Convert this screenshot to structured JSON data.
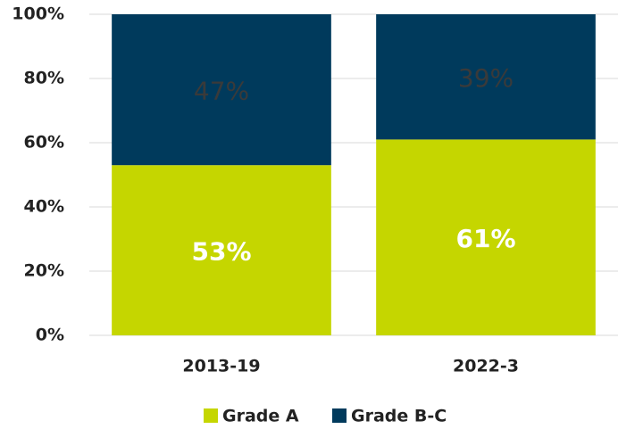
{
  "chart_data": {
    "type": "stacked_bar",
    "categories": [
      "2013-19",
      "2022-3"
    ],
    "series": [
      {
        "name": "Grade A",
        "color": "#c5d600",
        "values": [
          53,
          61
        ],
        "value_labels": [
          "53%",
          "61%"
        ]
      },
      {
        "name": "Grade B-C",
        "color": "#003a5c",
        "values": [
          47,
          39
        ],
        "value_labels": [
          "47%",
          "39%"
        ]
      }
    ],
    "ylim": [
      0,
      100
    ],
    "yticks": [
      {
        "value": 0,
        "label": "0%"
      },
      {
        "value": 20,
        "label": "20%"
      },
      {
        "value": 40,
        "label": "40%"
      },
      {
        "value": 60,
        "label": "60%"
      },
      {
        "value": 80,
        "label": "80%"
      },
      {
        "value": 100,
        "label": "100%"
      }
    ],
    "grid": true,
    "legend": "bottom"
  }
}
